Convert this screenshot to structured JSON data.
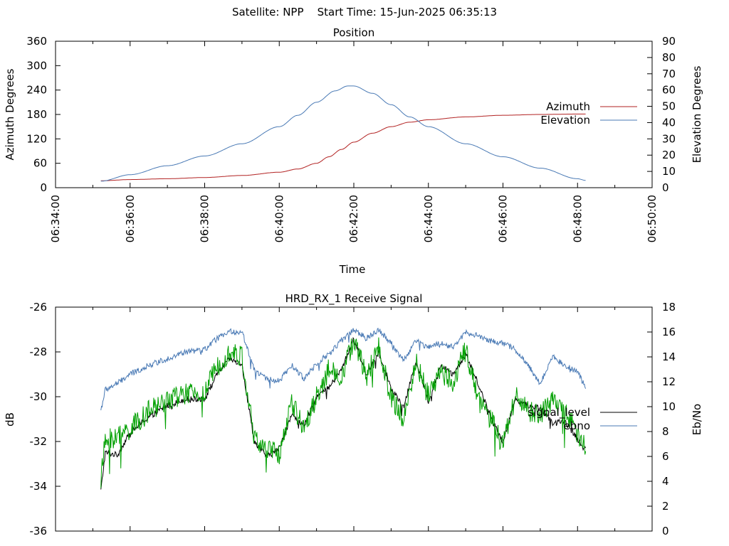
{
  "page": {
    "header": "Satellite: NPP    Start Time: 15-Jun-2025 06:35:13"
  },
  "chart_data": [
    {
      "type": "line",
      "title": "Position",
      "xlabel": "Time",
      "ylabel": "Azimuth Degrees",
      "y2label": "Elevation Degrees",
      "xlim": [
        "06:34:00",
        "06:50:00"
      ],
      "xticks": [
        "06:34:00",
        "06:36:00",
        "06:38:00",
        "06:40:00",
        "06:42:00",
        "06:44:00",
        "06:46:00",
        "06:48:00",
        "06:50:00"
      ],
      "ylim": [
        0,
        360
      ],
      "yticks": [
        0,
        60,
        120,
        180,
        240,
        300,
        360
      ],
      "y2lim": [
        0,
        90
      ],
      "y2ticks": [
        0,
        10,
        20,
        30,
        40,
        50,
        60,
        70,
        80,
        90
      ],
      "grid": false,
      "legend_position": "right",
      "series": [
        {
          "name": "Azimuth",
          "axis": "left",
          "color": "#b22222",
          "x": [
            "06:35:13",
            "06:36:00",
            "06:37:00",
            "06:38:00",
            "06:39:00",
            "06:40:00",
            "06:40:30",
            "06:41:00",
            "06:41:20",
            "06:41:40",
            "06:42:00",
            "06:42:30",
            "06:43:00",
            "06:43:30",
            "06:44:00",
            "06:45:00",
            "06:46:00",
            "06:47:00",
            "06:48:00",
            "06:48:13"
          ],
          "values": [
            17,
            20,
            22,
            25,
            30,
            38,
            46,
            60,
            76,
            94,
            112,
            134,
            150,
            161,
            167,
            174,
            178,
            180,
            181,
            181
          ]
        },
        {
          "name": "Elevation",
          "axis": "right",
          "color": "#4a7ab5",
          "x": [
            "06:35:13",
            "06:36:00",
            "06:37:00",
            "06:38:00",
            "06:39:00",
            "06:40:00",
            "06:40:30",
            "06:41:00",
            "06:41:30",
            "06:41:50",
            "06:42:00",
            "06:42:30",
            "06:43:00",
            "06:43:30",
            "06:44:00",
            "06:45:00",
            "06:46:00",
            "06:47:00",
            "06:48:00",
            "06:48:13"
          ],
          "values": [
            4,
            8,
            13.5,
            19.5,
            27,
            37.5,
            44.5,
            52.5,
            59.5,
            62.5,
            62.5,
            58,
            51,
            43.5,
            37.5,
            27,
            19,
            12,
            5.5,
            4.5
          ]
        }
      ]
    },
    {
      "type": "line",
      "title": "HRD_RX_1 Receive Signal",
      "ylabel": "dB",
      "y2label": "Eb/No",
      "xlim": [
        "06:34:00",
        "06:50:00"
      ],
      "ylim": [
        -36,
        -26
      ],
      "yticks": [
        -36,
        -34,
        -32,
        -30,
        -28,
        -26
      ],
      "y2lim": [
        0,
        18
      ],
      "y2ticks": [
        0,
        2,
        4,
        6,
        8,
        10,
        12,
        14,
        16,
        18
      ],
      "grid": false,
      "legend_position": "right",
      "series": [
        {
          "name": "signal_level",
          "axis": "left",
          "color": "#000000",
          "legend_color": "#000000",
          "x": [
            "06:35:13",
            "06:35:20",
            "06:35:40",
            "06:36:00",
            "06:36:30",
            "06:37:00",
            "06:37:30",
            "06:38:00",
            "06:38:20",
            "06:38:40",
            "06:39:00",
            "06:39:20",
            "06:39:40",
            "06:40:00",
            "06:40:20",
            "06:40:40",
            "06:41:00",
            "06:41:20",
            "06:41:40",
            "06:42:00",
            "06:42:20",
            "06:42:40",
            "06:43:00",
            "06:43:20",
            "06:43:40",
            "06:44:00",
            "06:44:20",
            "06:44:40",
            "06:45:00",
            "06:45:20",
            "06:45:40",
            "06:46:00",
            "06:46:20",
            "06:46:40",
            "06:47:00",
            "06:47:20",
            "06:47:40",
            "06:48:00",
            "06:48:13"
          ],
          "values": [
            -34.2,
            -32.5,
            -32.6,
            -31.6,
            -30.9,
            -30.4,
            -30.1,
            -30.1,
            -29.0,
            -28.3,
            -28.6,
            -32.0,
            -32.7,
            -32.3,
            -30.8,
            -31.3,
            -30.0,
            -29.6,
            -28.8,
            -27.4,
            -29.0,
            -28.0,
            -29.6,
            -30.5,
            -28.4,
            -30.2,
            -28.6,
            -29.0,
            -28.1,
            -29.4,
            -30.9,
            -32.0,
            -30.1,
            -30.4,
            -30.5,
            -31.2,
            -31.1,
            -31.9,
            -32.4
          ]
        },
        {
          "name": "ebno",
          "axis": "right",
          "color": "#00a000",
          "legend_color": "#4a7ab5",
          "x": [
            "06:35:13",
            "06:35:20",
            "06:35:40",
            "06:36:00",
            "06:36:30",
            "06:37:00",
            "06:37:30",
            "06:38:00",
            "06:38:20",
            "06:38:40",
            "06:39:00",
            "06:39:20",
            "06:39:40",
            "06:40:00",
            "06:40:20",
            "06:40:40",
            "06:41:00",
            "06:41:20",
            "06:41:40",
            "06:42:00",
            "06:42:20",
            "06:42:40",
            "06:43:00",
            "06:43:20",
            "06:43:40",
            "06:44:00",
            "06:44:20",
            "06:44:40",
            "06:45:00",
            "06:45:20",
            "06:45:40",
            "06:46:00",
            "06:46:20",
            "06:46:40",
            "06:47:00",
            "06:47:20",
            "06:47:40",
            "06:48:00",
            "06:48:13"
          ],
          "values": [
            4.2,
            7.2,
            7.6,
            8.2,
            9.6,
            10.6,
            11.0,
            11.0,
            13.4,
            14.4,
            14.0,
            7.4,
            6.5,
            6.2,
            10.2,
            8.4,
            10.8,
            13.0,
            12.4,
            15.4,
            12.4,
            14.8,
            10.6,
            9.0,
            13.6,
            10.8,
            12.8,
            12.0,
            14.6,
            10.6,
            9.0,
            6.9,
            11.0,
            9.6,
            9.4,
            10.4,
            10.0,
            7.6,
            6.8
          ]
        },
        {
          "name": "",
          "axis": "left",
          "color": "#4a7ab5",
          "x": [
            "06:35:13",
            "06:35:20",
            "06:35:40",
            "06:36:00",
            "06:36:30",
            "06:37:00",
            "06:37:30",
            "06:38:00",
            "06:38:20",
            "06:38:40",
            "06:39:00",
            "06:39:20",
            "06:39:40",
            "06:40:00",
            "06:40:20",
            "06:40:40",
            "06:41:00",
            "06:41:20",
            "06:41:40",
            "06:42:00",
            "06:42:20",
            "06:42:40",
            "06:43:00",
            "06:43:20",
            "06:43:40",
            "06:44:00",
            "06:44:20",
            "06:44:40",
            "06:45:00",
            "06:45:20",
            "06:45:40",
            "06:46:00",
            "06:46:20",
            "06:46:40",
            "06:47:00",
            "06:47:20",
            "06:47:40",
            "06:48:00",
            "06:48:13"
          ],
          "values": [
            -30.6,
            -29.7,
            -29.4,
            -29.0,
            -28.6,
            -28.3,
            -28.0,
            -27.9,
            -27.4,
            -27.1,
            -27.1,
            -28.8,
            -29.2,
            -29.3,
            -28.6,
            -29.2,
            -28.5,
            -28.1,
            -27.5,
            -27.0,
            -27.4,
            -27.0,
            -27.6,
            -28.4,
            -27.5,
            -27.8,
            -27.6,
            -27.8,
            -27.1,
            -27.3,
            -27.5,
            -27.6,
            -27.9,
            -28.6,
            -29.4,
            -28.2,
            -28.6,
            -28.9,
            -29.6
          ]
        }
      ]
    }
  ]
}
